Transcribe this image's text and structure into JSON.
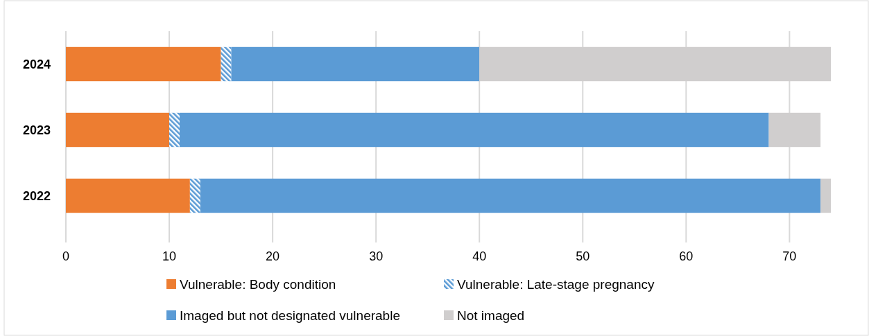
{
  "chart_data": {
    "type": "bar",
    "orientation": "horizontal",
    "stacked": true,
    "categories": [
      "2024",
      "2023",
      "2022"
    ],
    "series": [
      {
        "name": "Vulnerable: Body condition",
        "color": "#ed7d31",
        "values": [
          15,
          10,
          12
        ]
      },
      {
        "name": "Vulnerable: Late-stage pregnancy",
        "color": "#5b9bd5",
        "values": [
          1,
          1,
          1
        ]
      },
      {
        "name": "Imaged but not designated vulnerable",
        "color": "#5b9bd5",
        "values": [
          24,
          57,
          60
        ]
      },
      {
        "name": "Not imaged",
        "color": "#d0cece",
        "values": [
          34,
          5,
          1
        ]
      }
    ],
    "xlim": [
      0,
      74
    ],
    "xticks": [
      0,
      10,
      20,
      30,
      40,
      50,
      60,
      70
    ],
    "grid": "x",
    "legend": "bottom"
  }
}
